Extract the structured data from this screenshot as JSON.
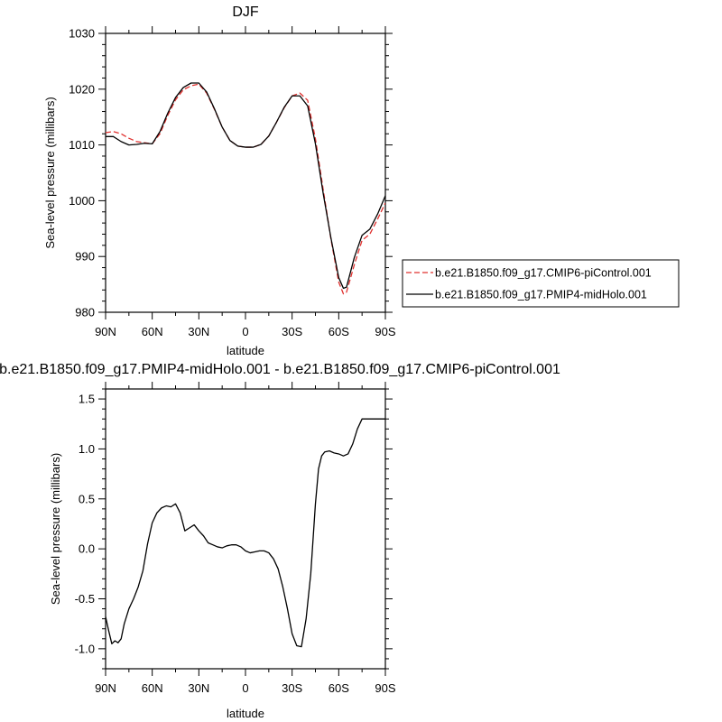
{
  "chart_data": [
    {
      "type": "line",
      "title": "DJF",
      "xlabel": "latitude",
      "ylabel": "Sea-level pressure (millibars)",
      "xlim": [
        90,
        -90
      ],
      "ylim": [
        980,
        1030
      ],
      "xticks": [
        90,
        60,
        30,
        0,
        -30,
        -60,
        -90
      ],
      "xticklabels": [
        "90N",
        "60N",
        "30N",
        "0",
        "30S",
        "60S",
        "90S"
      ],
      "yticks": [
        980,
        990,
        1000,
        1010,
        1020,
        1030
      ],
      "yticklabels": [
        "980",
        "990",
        "1000",
        "1010",
        "1020",
        "1030"
      ],
      "legend": "right",
      "series": [
        {
          "name": "b.e21.B1850.f09_g17.CMIP6-piControl.001",
          "color": "#e0312f",
          "dash": "dashed",
          "x": [
            90,
            85,
            80,
            75,
            70,
            65,
            60,
            55,
            50,
            45,
            40,
            35,
            30,
            25,
            20,
            15,
            10,
            5,
            0,
            -5,
            -10,
            -15,
            -20,
            -25,
            -30,
            -35,
            -40,
            -45,
            -50,
            -55,
            -60,
            -63,
            -65,
            -70,
            -75,
            -80,
            -85,
            -90
          ],
          "y": [
            1012.2,
            1012.4,
            1012.0,
            1011.2,
            1010.6,
            1010.4,
            1010.2,
            1012.0,
            1015.3,
            1018.1,
            1019.9,
            1020.6,
            1020.9,
            1019.3,
            1016.4,
            1013.2,
            1010.8,
            1009.8,
            1009.6,
            1009.6,
            1010.1,
            1011.6,
            1014.1,
            1016.7,
            1018.8,
            1019.3,
            1018.0,
            1011.1,
            1002.0,
            993.1,
            985.4,
            983.3,
            983.6,
            988.5,
            992.9,
            994.0,
            996.7,
            999.6
          ]
        },
        {
          "name": "b.e21.B1850.f09_g17.PMIP4-midHolo.001",
          "color": "#000000",
          "dash": "solid",
          "x": [
            90,
            85,
            80,
            75,
            70,
            65,
            60,
            55,
            50,
            45,
            40,
            35,
            30,
            25,
            20,
            15,
            10,
            5,
            0,
            -5,
            -10,
            -15,
            -20,
            -25,
            -30,
            -35,
            -40,
            -45,
            -50,
            -55,
            -60,
            -63,
            -65,
            -70,
            -75,
            -80,
            -85,
            -90
          ],
          "y": [
            1011.5,
            1011.5,
            1010.6,
            1010.0,
            1010.1,
            1010.3,
            1010.2,
            1012.4,
            1015.7,
            1018.5,
            1020.3,
            1021.1,
            1021.1,
            1019.5,
            1016.5,
            1013.2,
            1010.8,
            1009.8,
            1009.6,
            1009.6,
            1010.1,
            1011.6,
            1014.1,
            1016.8,
            1018.8,
            1018.8,
            1017.0,
            1010.2,
            1001.3,
            993.3,
            986.2,
            984.3,
            984.5,
            989.8,
            993.8,
            994.9,
            997.6,
            1000.9
          ]
        }
      ]
    },
    {
      "type": "line",
      "title": "b.e21.B1850.f09_g17.PMIP4-midHolo.001 - b.e21.B1850.f09_g17.CMIP6-piControl.001",
      "xlabel": "latitude",
      "ylabel": "Sea-level pressure (millibars)",
      "xlim": [
        90,
        -90
      ],
      "ylim": [
        -1.2,
        1.6
      ],
      "xticks": [
        90,
        60,
        30,
        0,
        -30,
        -60,
        -90
      ],
      "xticklabels": [
        "90N",
        "60N",
        "30N",
        "0",
        "30S",
        "60S",
        "90S"
      ],
      "yticks": [
        -1.0,
        -0.5,
        0.0,
        0.5,
        1.0,
        1.5
      ],
      "yticklabels": [
        "-1.0",
        "-0.5",
        "0.0",
        "0.5",
        "1.0",
        "1.5"
      ],
      "series": [
        {
          "color": "#000000",
          "dash": "solid",
          "x": [
            90,
            88,
            86,
            84,
            82,
            80,
            78,
            75,
            72,
            69,
            66,
            63,
            60,
            57,
            54,
            51,
            48,
            45,
            42,
            39,
            36,
            33,
            30,
            27,
            24,
            21,
            18,
            15,
            12,
            9,
            6,
            3,
            0,
            -3,
            -6,
            -9,
            -12,
            -15,
            -18,
            -21,
            -24,
            -27,
            -30,
            -33,
            -36,
            -39,
            -42,
            -45,
            -47,
            -49,
            -51,
            -54,
            -57,
            -60,
            -63,
            -66,
            -69,
            -72,
            -75,
            -78,
            -81,
            -84,
            -87,
            -90
          ],
          "y": [
            -0.68,
            -0.82,
            -0.95,
            -0.92,
            -0.94,
            -0.9,
            -0.75,
            -0.6,
            -0.5,
            -0.38,
            -0.22,
            0.05,
            0.26,
            0.36,
            0.41,
            0.43,
            0.42,
            0.45,
            0.36,
            0.18,
            0.21,
            0.24,
            0.18,
            0.13,
            0.06,
            0.04,
            0.02,
            0.01,
            0.03,
            0.04,
            0.04,
            0.02,
            -0.02,
            -0.04,
            -0.03,
            -0.02,
            -0.02,
            -0.04,
            -0.1,
            -0.2,
            -0.38,
            -0.6,
            -0.85,
            -0.97,
            -0.98,
            -0.7,
            -0.25,
            0.45,
            0.8,
            0.93,
            0.97,
            0.98,
            0.96,
            0.95,
            0.93,
            0.95,
            1.05,
            1.2,
            1.3,
            1.3,
            1.3,
            1.3,
            1.3,
            1.3
          ]
        }
      ]
    }
  ]
}
